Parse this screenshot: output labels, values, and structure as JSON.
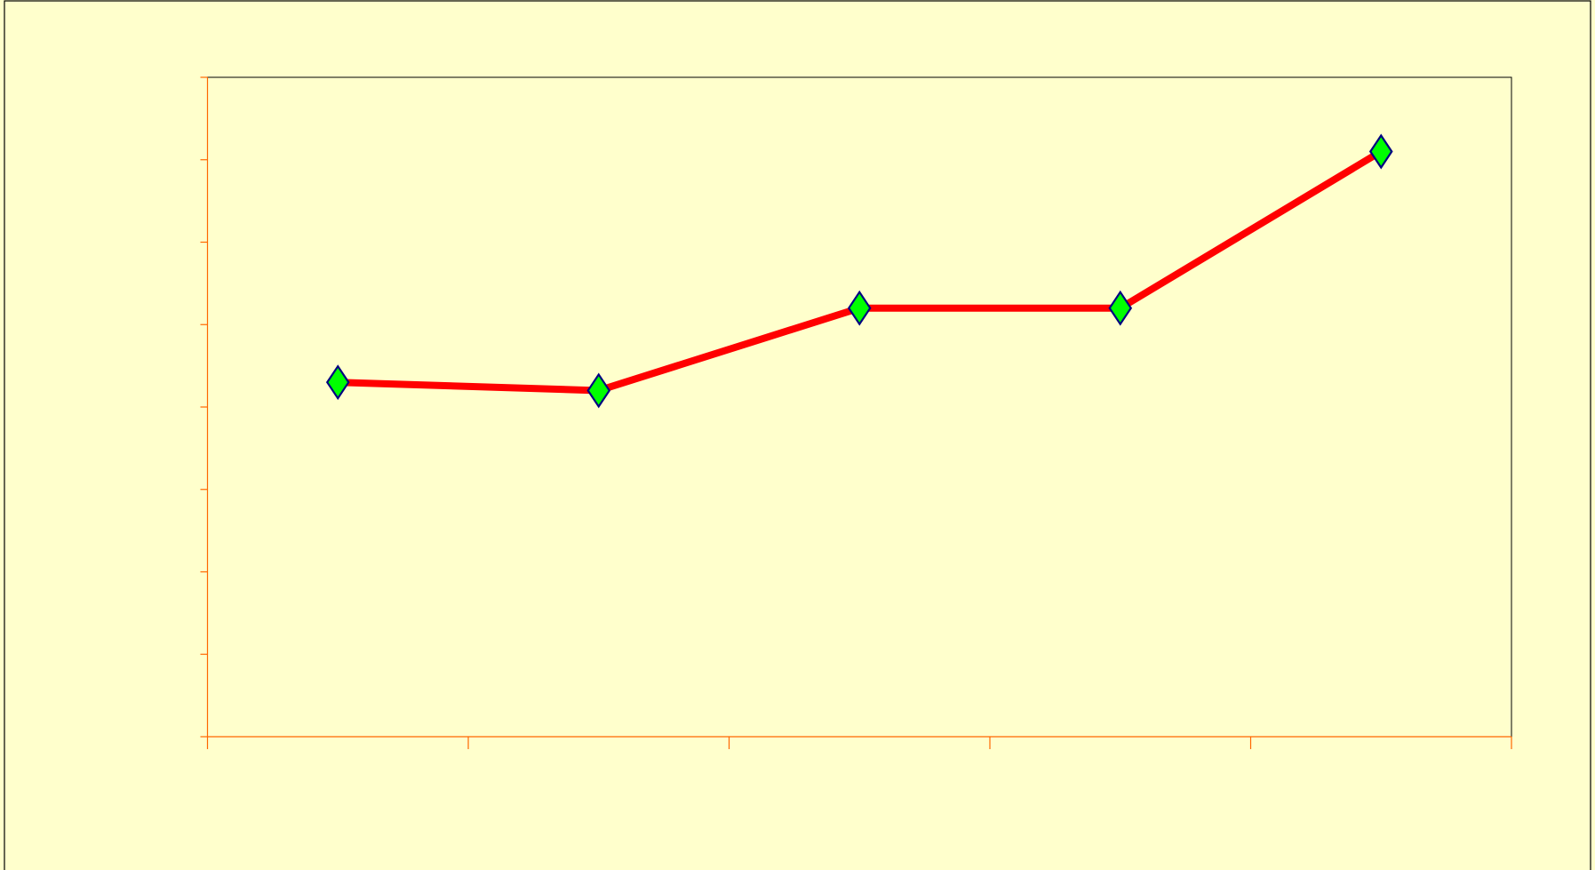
{
  "chart_data": {
    "type": "line",
    "categories": [
      null,
      null,
      null,
      null,
      null
    ],
    "series": [
      {
        "color": "#ff0000",
        "marker_color": "#00ff00",
        "marker_edge": "#000080",
        "values": [
          4.3,
          4.2,
          5.2,
          5.2,
          7.1
        ]
      }
    ],
    "ylim": [
      0,
      8
    ],
    "yticks": [
      0,
      1,
      2,
      3,
      4,
      5,
      6,
      7,
      8
    ],
    "axis_color": "#ff6600",
    "background": "#ffffcc",
    "grid": false
  }
}
